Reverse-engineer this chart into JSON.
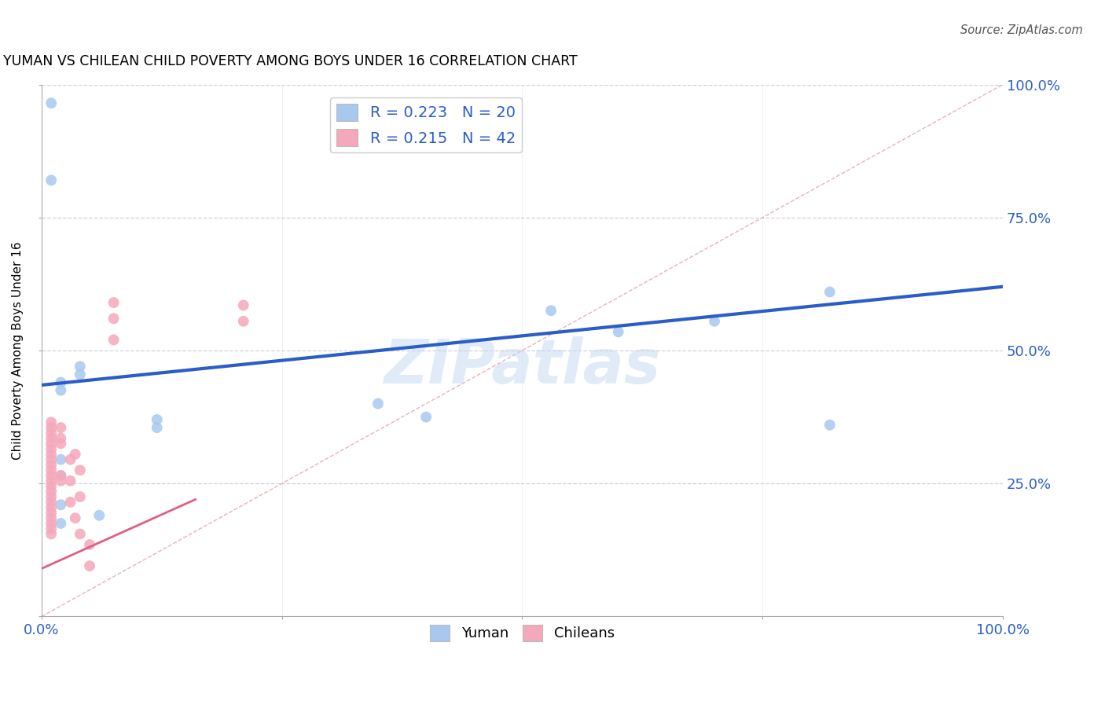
{
  "title": "YUMAN VS CHILEAN CHILD POVERTY AMONG BOYS UNDER 16 CORRELATION CHART",
  "source": "Source: ZipAtlas.com",
  "ylabel": "Child Poverty Among Boys Under 16",
  "xlim": [
    0.0,
    1.0
  ],
  "ylim": [
    0.0,
    1.0
  ],
  "xticklabels": [
    "0.0%",
    "",
    "",
    "",
    "100.0%"
  ],
  "yticklabels_right": [
    "",
    "25.0%",
    "50.0%",
    "75.0%",
    "100.0%"
  ],
  "watermark": "ZIPatlas",
  "blue_R": 0.223,
  "blue_N": 20,
  "pink_R": 0.215,
  "pink_N": 42,
  "blue_color": "#A8C8EE",
  "pink_color": "#F4A8BB",
  "blue_line_color": "#2B5DC8",
  "pink_line_color": "#E06080",
  "diagonal_color": "#E0A0A8",
  "grid_color": "#D0D0E0",
  "blue_scatter": [
    [
      0.01,
      0.965
    ],
    [
      0.01,
      0.82
    ],
    [
      0.04,
      0.47
    ],
    [
      0.04,
      0.455
    ],
    [
      0.02,
      0.44
    ],
    [
      0.02,
      0.425
    ],
    [
      0.12,
      0.37
    ],
    [
      0.12,
      0.355
    ],
    [
      0.02,
      0.295
    ],
    [
      0.02,
      0.265
    ],
    [
      0.02,
      0.21
    ],
    [
      0.06,
      0.19
    ],
    [
      0.35,
      0.4
    ],
    [
      0.4,
      0.375
    ],
    [
      0.53,
      0.575
    ],
    [
      0.6,
      0.535
    ],
    [
      0.7,
      0.555
    ],
    [
      0.82,
      0.36
    ],
    [
      0.82,
      0.61
    ],
    [
      0.02,
      0.175
    ]
  ],
  "pink_scatter": [
    [
      0.01,
      0.365
    ],
    [
      0.01,
      0.355
    ],
    [
      0.01,
      0.345
    ],
    [
      0.01,
      0.335
    ],
    [
      0.01,
      0.325
    ],
    [
      0.01,
      0.315
    ],
    [
      0.01,
      0.305
    ],
    [
      0.01,
      0.295
    ],
    [
      0.01,
      0.285
    ],
    [
      0.01,
      0.275
    ],
    [
      0.01,
      0.265
    ],
    [
      0.01,
      0.255
    ],
    [
      0.01,
      0.245
    ],
    [
      0.01,
      0.235
    ],
    [
      0.01,
      0.225
    ],
    [
      0.01,
      0.215
    ],
    [
      0.01,
      0.205
    ],
    [
      0.01,
      0.195
    ],
    [
      0.01,
      0.185
    ],
    [
      0.01,
      0.175
    ],
    [
      0.01,
      0.165
    ],
    [
      0.01,
      0.155
    ],
    [
      0.02,
      0.355
    ],
    [
      0.02,
      0.265
    ],
    [
      0.02,
      0.335
    ],
    [
      0.02,
      0.325
    ],
    [
      0.02,
      0.255
    ],
    [
      0.03,
      0.295
    ],
    [
      0.03,
      0.255
    ],
    [
      0.03,
      0.215
    ],
    [
      0.035,
      0.305
    ],
    [
      0.035,
      0.185
    ],
    [
      0.04,
      0.155
    ],
    [
      0.04,
      0.275
    ],
    [
      0.04,
      0.225
    ],
    [
      0.05,
      0.135
    ],
    [
      0.05,
      0.095
    ],
    [
      0.075,
      0.59
    ],
    [
      0.075,
      0.56
    ],
    [
      0.075,
      0.52
    ],
    [
      0.21,
      0.585
    ],
    [
      0.21,
      0.555
    ]
  ],
  "blue_line_x": [
    0.0,
    1.0
  ],
  "blue_line_y": [
    0.435,
    0.62
  ],
  "pink_line_x": [
    0.0,
    0.16
  ],
  "pink_line_y": [
    0.09,
    0.22
  ],
  "marker_size": 100,
  "legend_fontsize": 14,
  "title_fontsize": 12.5,
  "axis_label_fontsize": 11
}
